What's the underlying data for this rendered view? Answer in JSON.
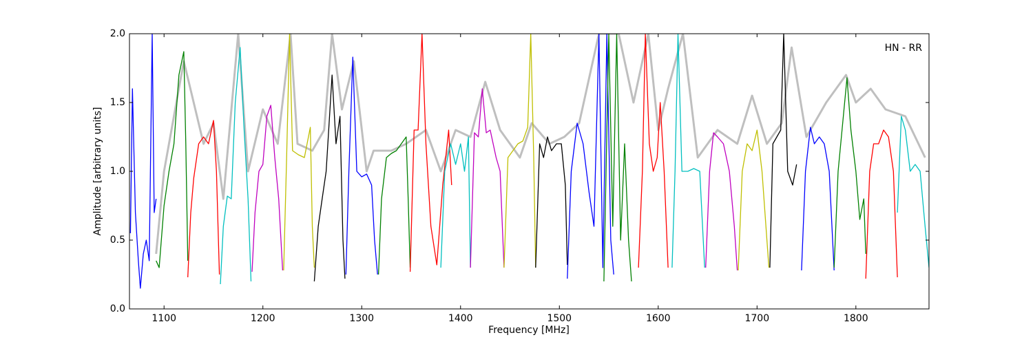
{
  "chart_data": {
    "type": "line",
    "xlabel": "Frequency [MHz]",
    "ylabel": "Amplitude [arbitrary units]",
    "annotation": "HN - RR",
    "xlim": [
      1065,
      1874
    ],
    "ylim": [
      0,
      2
    ],
    "xticks": [
      1100,
      1200,
      1300,
      1400,
      1500,
      1600,
      1700,
      1800
    ],
    "yticks": [
      {
        "value": 0,
        "label": "0.0"
      },
      0.5,
      {
        "value": 1,
        "label": "1.0"
      },
      1.5,
      {
        "value": 2,
        "label": "2.0"
      }
    ],
    "series": [
      {
        "color": "#bfbfbf",
        "x": [
          1092,
          1100,
          1120,
          1140,
          1150,
          1160,
          1175,
          1185,
          1200,
          1215,
          1228,
          1235,
          1250,
          1262,
          1270,
          1280,
          1292,
          1305,
          1312,
          1330,
          1345,
          1365,
          1380,
          1395,
          1410,
          1425,
          1440,
          1460,
          1472,
          1490,
          1505,
          1520,
          1540,
          1560,
          1575,
          1590,
          1600,
          1610,
          1625,
          1640,
          1660,
          1680,
          1695,
          1710,
          1725,
          1735,
          1750,
          1770,
          1790,
          1800,
          1815,
          1830,
          1850,
          1870
        ],
        "values": [
          0.4,
          1.0,
          1.8,
          1.2,
          1.35,
          0.8,
          2.0,
          1.0,
          1.45,
          1.2,
          2.0,
          1.2,
          1.15,
          1.3,
          2.0,
          1.45,
          1.8,
          1.0,
          1.15,
          1.15,
          1.2,
          1.3,
          1.0,
          1.3,
          1.25,
          1.65,
          1.3,
          1.1,
          1.35,
          1.2,
          1.25,
          1.35,
          2.0,
          2.0,
          1.5,
          2.0,
          1.3,
          1.6,
          2.0,
          1.1,
          1.3,
          1.2,
          1.55,
          1.2,
          1.35,
          1.9,
          1.25,
          1.5,
          1.7,
          1.5,
          1.6,
          1.45,
          1.4,
          1.1
        ]
      },
      {
        "color": "#0000ff",
        "x": [
          1066,
          1068,
          1071,
          1074,
          1076,
          1079,
          1082,
          1085,
          1088,
          1090,
          1092
        ],
        "values": [
          0.55,
          1.6,
          0.7,
          0.35,
          0.15,
          0.4,
          0.5,
          0.35,
          2.0,
          0.7,
          0.8
        ]
      },
      {
        "color": "#008000",
        "x": [
          1092,
          1095,
          1100,
          1105,
          1110,
          1115,
          1120,
          1122,
          1124
        ],
        "values": [
          0.35,
          0.3,
          0.75,
          1.0,
          1.2,
          1.7,
          1.87,
          1.2,
          0.35
        ]
      },
      {
        "color": "#ff0000",
        "x": [
          1124,
          1127,
          1130,
          1135,
          1140,
          1145,
          1150,
          1153,
          1156
        ],
        "values": [
          0.23,
          0.7,
          0.95,
          1.2,
          1.25,
          1.2,
          1.37,
          1.0,
          0.25
        ]
      },
      {
        "color": "#00bfbf",
        "x": [
          1157,
          1160,
          1164,
          1168,
          1172,
          1177,
          1181,
          1185,
          1188
        ],
        "values": [
          0.18,
          0.6,
          0.82,
          0.8,
          1.5,
          1.9,
          1.3,
          0.8,
          0.2
        ]
      },
      {
        "color": "#bf00bf",
        "x": [
          1189,
          1192,
          1196,
          1200,
          1204,
          1208,
          1212,
          1216,
          1220
        ],
        "values": [
          0.27,
          0.7,
          1.0,
          1.05,
          1.4,
          1.48,
          1.1,
          0.8,
          0.28
        ]
      },
      {
        "color": "#bfbf00",
        "x": [
          1221,
          1224,
          1227,
          1230,
          1236,
          1242,
          1248,
          1250,
          1252
        ],
        "values": [
          0.28,
          1.1,
          2.0,
          1.15,
          1.12,
          1.1,
          1.32,
          0.6,
          0.3
        ]
      },
      {
        "color": "#000000",
        "x": [
          1252,
          1256,
          1260,
          1264,
          1270,
          1274,
          1278,
          1281,
          1283
        ],
        "values": [
          0.2,
          0.6,
          0.8,
          1.0,
          1.7,
          1.2,
          1.4,
          0.5,
          0.22
        ]
      },
      {
        "color": "#0000ff",
        "x": [
          1284,
          1287,
          1291,
          1295,
          1300,
          1305,
          1310,
          1313,
          1316
        ],
        "values": [
          0.25,
          1.0,
          1.83,
          1.0,
          0.96,
          0.98,
          0.9,
          0.5,
          0.25
        ]
      },
      {
        "color": "#008000",
        "x": [
          1317,
          1320,
          1325,
          1330,
          1335,
          1340,
          1345,
          1347,
          1349
        ],
        "values": [
          0.25,
          0.8,
          1.1,
          1.13,
          1.15,
          1.2,
          1.25,
          0.8,
          0.3
        ]
      },
      {
        "color": "#ff0000",
        "x": [
          1349,
          1353,
          1357,
          1361,
          1365,
          1370,
          1376,
          1382,
          1388,
          1391
        ],
        "values": [
          0.27,
          1.3,
          1.3,
          2.0,
          1.2,
          0.6,
          0.32,
          0.9,
          1.3,
          0.9
        ]
      },
      {
        "color": "#00bfbf",
        "x": [
          1380,
          1384,
          1390,
          1395,
          1400,
          1404,
          1408,
          1410
        ],
        "values": [
          0.3,
          1.0,
          1.2,
          1.05,
          1.2,
          1.0,
          1.25,
          0.3
        ]
      },
      {
        "color": "#bf00bf",
        "x": [
          1410,
          1414,
          1418,
          1422,
          1426,
          1430,
          1436,
          1440,
          1444
        ],
        "values": [
          0.3,
          1.28,
          1.25,
          1.6,
          1.28,
          1.3,
          1.1,
          1.0,
          0.3
        ]
      },
      {
        "color": "#bfbf00",
        "x": [
          1444,
          1448,
          1453,
          1458,
          1463,
          1468,
          1471,
          1474,
          1476
        ],
        "values": [
          0.3,
          1.1,
          1.15,
          1.2,
          1.22,
          1.32,
          2.0,
          1.1,
          0.3
        ]
      },
      {
        "color": "#000000",
        "x": [
          1476,
          1480,
          1484,
          1488,
          1492,
          1497,
          1502,
          1506,
          1508
        ],
        "values": [
          0.3,
          1.2,
          1.1,
          1.25,
          1.15,
          1.2,
          1.2,
          0.9,
          0.32
        ]
      },
      {
        "color": "#0000ff",
        "x": [
          1508,
          1512,
          1518,
          1524,
          1530,
          1535,
          1540,
          1544,
          1548,
          1552,
          1555
        ],
        "values": [
          0.22,
          1.0,
          1.35,
          1.2,
          0.85,
          0.6,
          2.0,
          0.3,
          2.0,
          0.5,
          0.25
        ]
      },
      {
        "color": "#008000",
        "x": [
          1545,
          1550,
          1554,
          1558,
          1562,
          1566,
          1570,
          1573
        ],
        "values": [
          0.2,
          2.0,
          0.6,
          2.0,
          0.5,
          1.2,
          0.5,
          0.2
        ]
      },
      {
        "color": "#ff0000",
        "x": [
          1580,
          1584,
          1587,
          1591,
          1595,
          1599,
          1602,
          1606,
          1610
        ],
        "values": [
          0.3,
          1.0,
          2.0,
          1.2,
          1.0,
          1.1,
          1.5,
          1.0,
          0.3
        ]
      },
      {
        "color": "#00bfbf",
        "x": [
          1614,
          1617,
          1620,
          1624,
          1630,
          1636,
          1642,
          1647
        ],
        "values": [
          0.3,
          1.0,
          2.0,
          1.0,
          1.0,
          1.02,
          1.0,
          0.3
        ]
      },
      {
        "color": "#bf00bf",
        "x": [
          1648,
          1652,
          1656,
          1660,
          1666,
          1672,
          1677,
          1680
        ],
        "values": [
          0.3,
          1.0,
          1.28,
          1.25,
          1.2,
          1.0,
          0.6,
          0.28
        ]
      },
      {
        "color": "#bfbf00",
        "x": [
          1681,
          1685,
          1690,
          1695,
          1700,
          1705,
          1709,
          1712
        ],
        "values": [
          0.28,
          1.0,
          1.2,
          1.15,
          1.3,
          1.0,
          0.6,
          0.3
        ]
      },
      {
        "color": "#000000",
        "x": [
          1713,
          1716,
          1720,
          1724,
          1727,
          1731,
          1736,
          1740
        ],
        "values": [
          0.3,
          1.2,
          1.25,
          1.3,
          2.0,
          1.0,
          0.9,
          1.05
        ]
      },
      {
        "color": "#0000ff",
        "x": [
          1745,
          1749,
          1754,
          1758,
          1763,
          1768,
          1773,
          1778
        ],
        "values": [
          0.28,
          1.0,
          1.32,
          1.2,
          1.25,
          1.2,
          1.0,
          0.28
        ]
      },
      {
        "color": "#008000",
        "x": [
          1778,
          1782,
          1786,
          1791,
          1795,
          1800,
          1804,
          1808,
          1810
        ],
        "values": [
          0.3,
          1.0,
          1.3,
          1.68,
          1.3,
          1.0,
          0.65,
          0.8,
          0.4
        ]
      },
      {
        "color": "#ff0000",
        "x": [
          1810,
          1814,
          1818,
          1823,
          1828,
          1833,
          1838,
          1842
        ],
        "values": [
          0.22,
          1.0,
          1.2,
          1.2,
          1.3,
          1.25,
          1.0,
          0.23
        ]
      },
      {
        "color": "#00bfbf",
        "x": [
          1842,
          1846,
          1850,
          1855,
          1860,
          1865,
          1870,
          1874
        ],
        "values": [
          0.7,
          1.4,
          1.3,
          1.0,
          1.05,
          1.0,
          0.6,
          0.3
        ]
      }
    ]
  }
}
